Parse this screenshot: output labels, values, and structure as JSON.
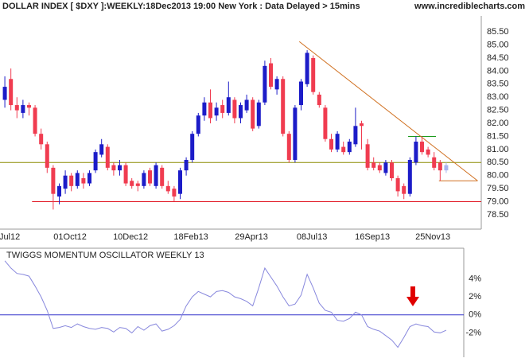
{
  "header": {
    "site": "www.incrediblecharts.com"
  },
  "chart_data": [
    {
      "type": "candlestick",
      "title": "DOLLAR INDEX [ $DXY ]:WEEKLY:18Dec2013 19:00 New York : Data Delayed > 15mins",
      "categories": [
        "Jul12",
        null,
        null,
        null,
        null,
        null,
        null,
        null,
        null,
        null,
        "01Oct12",
        null,
        null,
        null,
        null,
        null,
        null,
        null,
        null,
        null,
        "10Dec12",
        null,
        null,
        null,
        null,
        null,
        null,
        null,
        null,
        null,
        "18Feb13",
        null,
        null,
        null,
        null,
        null,
        null,
        null,
        null,
        null,
        "29Apr13",
        null,
        null,
        null,
        null,
        null,
        null,
        null,
        null,
        null,
        "08Jul13",
        null,
        null,
        null,
        null,
        null,
        null,
        null,
        null,
        null,
        "16Sep13",
        null,
        null,
        null,
        null,
        null,
        null,
        null,
        null,
        null,
        "25Nov13",
        null,
        null,
        null
      ],
      "open": [
        82.9,
        83.7,
        82.7,
        82.4,
        82.7,
        82.6,
        81.6,
        81.2,
        80.3,
        79.2,
        79.5,
        80.0,
        79.6,
        79.9,
        79.7,
        80.2,
        80.8,
        81.1,
        80.4,
        80.2,
        80.4,
        79.8,
        79.7,
        79.6,
        80.2,
        79.6,
        80.3,
        79.6,
        79.5,
        79.3,
        80.2,
        80.6,
        81.6,
        82.3,
        82.8,
        82.3,
        82.7,
        82.4,
        82.9,
        82.2,
        82.5,
        82.9,
        81.9,
        82.8,
        84.3,
        83.3,
        83.7,
        81.6,
        80.6,
        82.7,
        83.5,
        84.5,
        83.1,
        82.6,
        81.4,
        81.0,
        81.1,
        80.9,
        81.2,
        82.0,
        81.2,
        80.5,
        80.4,
        80.1,
        80.5,
        79.9,
        79.6,
        79.3,
        80.5,
        81.3,
        81.0,
        80.7,
        80.5,
        80.2
      ],
      "high": [
        83.8,
        84.1,
        83.0,
        82.9,
        82.8,
        82.7,
        81.8,
        81.3,
        80.4,
        79.7,
        80.2,
        80.1,
        80.2,
        80.1,
        80.2,
        81.0,
        81.4,
        81.2,
        80.5,
        80.6,
        80.5,
        79.9,
        79.8,
        80.2,
        80.3,
        80.5,
        80.4,
        79.8,
        79.6,
        80.3,
        80.7,
        81.7,
        82.4,
        83.0,
        83.3,
        82.8,
        82.9,
        83.6,
        83.0,
        82.8,
        83.1,
        83.0,
        82.9,
        84.4,
        84.5,
        83.8,
        83.8,
        81.7,
        82.7,
        83.7,
        84.8,
        84.6,
        83.2,
        82.7,
        81.6,
        81.7,
        81.3,
        81.4,
        82.6,
        82.1,
        81.4,
        80.7,
        80.5,
        80.6,
        80.6,
        80.0,
        79.7,
        80.7,
        81.5,
        81.5,
        81.1,
        80.9,
        80.6,
        80.5
      ],
      "low": [
        82.6,
        82.5,
        82.2,
        82.2,
        82.3,
        81.5,
        81.0,
        80.1,
        78.7,
        78.9,
        79.3,
        79.4,
        79.5,
        79.5,
        79.6,
        80.1,
        80.7,
        80.2,
        80.0,
        80.0,
        79.6,
        79.5,
        79.4,
        79.5,
        79.6,
        79.5,
        79.5,
        79.3,
        79.0,
        79.1,
        80.0,
        80.5,
        81.5,
        82.1,
        82.0,
        82.1,
        82.2,
        82.3,
        82.0,
        82.0,
        82.4,
        81.7,
        81.8,
        82.7,
        83.3,
        83.1,
        81.5,
        80.5,
        80.5,
        82.5,
        83.4,
        83.1,
        82.6,
        81.3,
        80.9,
        80.9,
        80.8,
        80.8,
        81.1,
        81.0,
        80.2,
        80.2,
        80.1,
        80.0,
        79.8,
        79.2,
        79.1,
        79.2,
        80.4,
        80.8,
        80.7,
        80.2,
        79.8,
        80.1
      ],
      "close": [
        83.4,
        82.7,
        82.5,
        82.7,
        82.6,
        81.6,
        81.2,
        80.3,
        79.3,
        79.6,
        80.0,
        79.6,
        80.1,
        79.7,
        80.1,
        80.9,
        81.2,
        80.3,
        80.2,
        80.4,
        79.7,
        79.6,
        79.6,
        80.1,
        79.7,
        80.4,
        79.6,
        79.4,
        79.2,
        80.2,
        80.6,
        81.6,
        82.3,
        82.8,
        82.2,
        82.6,
        82.4,
        83.0,
        82.2,
        82.7,
        82.9,
        81.8,
        82.8,
        84.2,
        83.4,
        83.7,
        81.6,
        80.6,
        82.6,
        83.6,
        84.7,
        83.2,
        82.7,
        81.4,
        81.0,
        81.6,
        80.9,
        81.3,
        81.9,
        81.9,
        80.3,
        80.3,
        80.2,
        80.5,
        79.9,
        79.4,
        79.3,
        80.6,
        81.3,
        80.9,
        80.8,
        80.3,
        80.2,
        80.4
      ],
      "up_color": "#1c1cc8",
      "down_color": "#f03c50",
      "current_color": "#a8b4f0",
      "xlim": [
        -0.8,
        78.8
      ],
      "ylim": [
        77.95,
        85.87
      ],
      "yticks": [
        {
          "value": 78.5,
          "label": "78.50"
        },
        {
          "value": 79,
          "label": "79.00"
        },
        {
          "value": 79.5,
          "label": "79.50"
        },
        {
          "value": 80,
          "label": "80.00"
        },
        {
          "value": 80.5,
          "label": "80.50"
        },
        {
          "value": 81,
          "label": "81.00"
        },
        {
          "value": 81.5,
          "label": "81.50"
        },
        {
          "value": 82,
          "label": "82.00"
        },
        {
          "value": 82.5,
          "label": "82.50"
        },
        {
          "value": 83,
          "label": "83.00"
        },
        {
          "value": 83.5,
          "label": "83.50"
        },
        {
          "value": 84,
          "label": "84.00"
        },
        {
          "value": 84.5,
          "label": "84.50"
        },
        {
          "value": 85,
          "label": "85.00"
        },
        {
          "value": 85.5,
          "label": "85.50"
        }
      ],
      "lines": [
        {
          "color": "#8b8b00",
          "x": [
            -0.8,
            78.8
          ],
          "y": [
            80.5,
            80.5
          ]
        },
        {
          "color": "#e0101c",
          "x": [
            4.5,
            78.8
          ],
          "y": [
            79.0,
            79.0
          ]
        },
        {
          "color": "#1a9a1a",
          "x": [
            66.7,
            71.3
          ],
          "y": [
            81.5,
            81.5
          ]
        },
        {
          "color": "#d07020",
          "x": [
            48.7,
            78.2
          ],
          "y": [
            85.13,
            79.8
          ]
        },
        {
          "color": "#d07020",
          "x": [
            71.8,
            78.2
          ],
          "y": [
            79.8,
            79.8
          ]
        }
      ]
    },
    {
      "type": "line",
      "title": "TWIGGS MOMENTUM OSCILLATOR WEEKLY 13",
      "values": [
        6.0,
        5.2,
        4.6,
        4.5,
        4.3,
        3.2,
        2.0,
        0.5,
        -1.5,
        -1.4,
        -1.2,
        -1.4,
        -1.0,
        -1.3,
        -1.5,
        -1.6,
        -1.4,
        -1.5,
        -1.9,
        -1.4,
        -1.5,
        -2.0,
        -1.3,
        -1.7,
        -1.2,
        -1.0,
        -1.8,
        -1.6,
        -1.2,
        -0.5,
        1.0,
        2.0,
        2.6,
        2.3,
        2.0,
        2.6,
        2.7,
        2.5,
        2.0,
        1.8,
        1.5,
        1.0,
        3.0,
        5.2,
        4.2,
        3.2,
        2.0,
        1.0,
        1.2,
        2.2,
        4.5,
        3.0,
        1.3,
        0.5,
        0.3,
        -0.6,
        -0.7,
        -0.4,
        0.3,
        0.0,
        -1.3,
        -1.6,
        -1.8,
        -2.3,
        -2.8,
        -3.6,
        -2.5,
        -1.3,
        -1.0,
        -1.2,
        -1.3,
        -1.9,
        -2.0,
        -1.7
      ],
      "color": "#8888dd",
      "zero_color": "#3333cc",
      "xlim": [
        -0.8,
        78.8
      ],
      "ylim": [
        -4.7,
        7.4
      ],
      "yticks": [
        {
          "value": -2,
          "label": "-2%"
        },
        {
          "value": 0,
          "label": "0%"
        },
        {
          "value": 2,
          "label": "2%"
        },
        {
          "value": 4,
          "label": "4%"
        }
      ]
    }
  ]
}
